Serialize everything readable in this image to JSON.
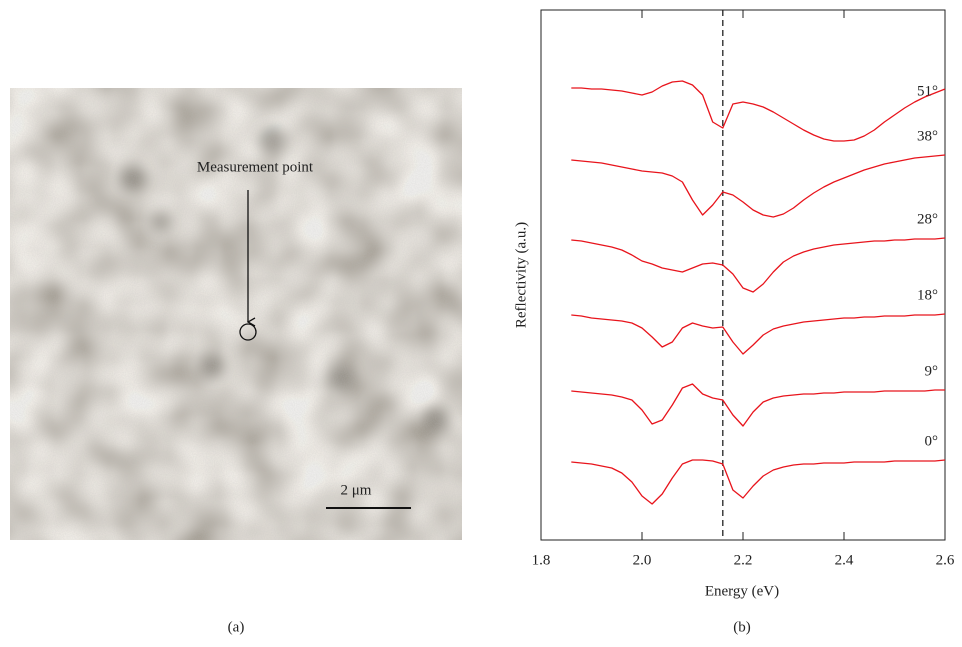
{
  "image": {
    "annotation": "Measurement point",
    "scale_bar": "2 μm",
    "panel_label": "(a)"
  },
  "chart_data": {
    "type": "line",
    "panel_label": "(b)",
    "x_label": "Energy (eV)",
    "y_label": "Reflectivity (a.u.)",
    "xlim": [
      1.8,
      2.6
    ],
    "ylim": [
      0,
      530
    ],
    "xticks": [
      1.8,
      {
        "value": 2,
        "label": "2.0"
      },
      2.2,
      2.4,
      2.6
    ],
    "vline": 2.16,
    "x": [
      1.86,
      1.88,
      1.9,
      1.92,
      1.94,
      1.96,
      1.98,
      2,
      2.02,
      2.04,
      2.06,
      2.08,
      2.1,
      2.12,
      2.14,
      2.16,
      2.18,
      2.2,
      2.22,
      2.24,
      2.26,
      2.28,
      2.3,
      2.32,
      2.34,
      2.36,
      2.38,
      2.4,
      2.42,
      2.44,
      2.46,
      2.48,
      2.5,
      2.52,
      2.54,
      2.56,
      2.58,
      2.6
    ],
    "series": [
      {
        "name": "51°",
        "color": "#e8141c",
        "values": [
          452,
          452,
          451,
          451,
          450,
          449,
          447,
          445,
          448,
          454,
          458,
          459,
          455,
          445,
          418,
          412,
          436,
          438,
          436,
          433,
          428,
          422,
          416,
          410,
          405,
          401,
          399,
          399,
          400,
          404,
          410,
          418,
          425,
          432,
          438,
          443,
          447,
          451
        ]
      },
      {
        "name": "38°",
        "color": "#e8141c",
        "values": [
          380,
          379,
          378,
          377,
          375,
          373,
          371,
          369,
          368,
          367,
          364,
          358,
          340,
          325,
          335,
          348,
          345,
          338,
          330,
          325,
          323,
          326,
          332,
          340,
          347,
          353,
          358,
          362,
          366,
          370,
          373,
          376,
          378,
          380,
          382,
          383,
          384,
          385
        ]
      },
      {
        "name": "28°",
        "color": "#e8141c",
        "values": [
          300,
          299,
          297,
          295,
          293,
          290,
          285,
          279,
          276,
          272,
          270,
          268,
          272,
          276,
          277,
          275,
          266,
          252,
          248,
          256,
          268,
          278,
          284,
          288,
          291,
          293,
          295,
          296,
          297,
          298,
          299,
          299,
          300,
          300,
          301,
          301,
          301,
          302
        ]
      },
      {
        "name": "18°",
        "color": "#e8141c",
        "values": [
          225,
          224,
          222,
          221,
          220,
          219,
          217,
          212,
          203,
          193,
          198,
          212,
          217,
          214,
          212,
          213,
          198,
          186,
          195,
          205,
          211,
          214,
          216,
          218,
          219,
          220,
          221,
          222,
          222,
          223,
          223,
          224,
          224,
          224,
          225,
          225,
          225,
          226
        ]
      },
      {
        "name": "9°",
        "color": "#e8141c",
        "values": [
          149,
          148,
          147,
          146,
          145,
          143,
          140,
          130,
          116,
          120,
          135,
          152,
          156,
          146,
          142,
          140,
          125,
          114,
          128,
          138,
          142,
          144,
          145,
          146,
          146,
          147,
          147,
          148,
          148,
          148,
          148,
          149,
          149,
          149,
          149,
          149,
          150,
          150
        ]
      },
      {
        "name": "0°",
        "color": "#e8141c",
        "values": [
          78,
          77,
          76,
          74,
          72,
          67,
          58,
          44,
          36,
          46,
          62,
          76,
          80,
          80,
          79,
          76,
          50,
          42,
          54,
          64,
          70,
          73,
          75,
          76,
          76,
          77,
          77,
          77,
          78,
          78,
          78,
          78,
          79,
          79,
          79,
          79,
          79,
          80
        ]
      }
    ]
  }
}
